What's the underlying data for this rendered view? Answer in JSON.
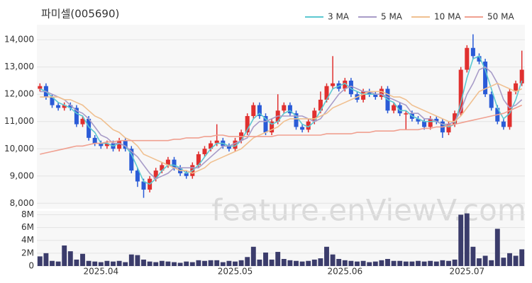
{
  "chart_data": [
    {
      "type": "candlestick",
      "title": "파미셀(005690)",
      "watermark": "feature.enViewV.com",
      "up_color": "#e0302f",
      "down_color": "#2a5bd7",
      "open": [
        12200,
        12300,
        11900,
        11600,
        11500,
        11600,
        11500,
        10900,
        11100,
        10400,
        10200,
        10100,
        10200,
        10000,
        10300,
        10000,
        9200,
        8800,
        8500,
        8900,
        9200,
        9400,
        9600,
        9300,
        9100,
        9000,
        9400,
        9800,
        10000,
        10200,
        10300,
        10100,
        10000,
        10300,
        10600,
        11200,
        11600,
        11200,
        10600,
        11000,
        11400,
        11600,
        11300,
        10800,
        10700,
        11000,
        11400,
        11800,
        12300,
        12400,
        12200,
        12500,
        12000,
        11800,
        12100,
        12000,
        11900,
        12200,
        11400,
        11600,
        11300,
        11300,
        11100,
        11000,
        10800,
        11100,
        11000,
        10600,
        10900,
        11300,
        12900,
        13700,
        13400,
        13200,
        12000,
        11500,
        11000,
        10800,
        12100,
        12400
      ],
      "high": [
        12400,
        12400,
        12000,
        11700,
        11700,
        11700,
        11600,
        11200,
        11200,
        10500,
        10300,
        10300,
        10300,
        10400,
        10400,
        10100,
        9300,
        8900,
        9000,
        9300,
        9500,
        9700,
        9700,
        9400,
        9200,
        9500,
        9900,
        10100,
        10300,
        10900,
        10400,
        10200,
        10400,
        10700,
        11300,
        11700,
        11700,
        11300,
        11100,
        12000,
        11700,
        11700,
        11400,
        10900,
        11100,
        11500,
        12100,
        12400,
        13400,
        12500,
        12600,
        12600,
        12100,
        12200,
        12200,
        12100,
        12300,
        12300,
        11700,
        11700,
        11400,
        11400,
        11200,
        11100,
        11200,
        11200,
        11100,
        11000,
        11400,
        13000,
        13800,
        14200,
        13500,
        13300,
        12100,
        11600,
        11100,
        12200,
        12500,
        13600
      ],
      "low": [
        12100,
        11800,
        11500,
        11400,
        11400,
        11400,
        10800,
        10800,
        10300,
        10100,
        10000,
        10000,
        9900,
        9900,
        9900,
        9100,
        8600,
        8200,
        8400,
        8800,
        9100,
        9300,
        9200,
        9000,
        8900,
        8900,
        9300,
        9700,
        9900,
        10100,
        10000,
        9900,
        9900,
        10200,
        10500,
        11100,
        11100,
        10500,
        10500,
        10900,
        11300,
        11200,
        10700,
        10600,
        10600,
        10900,
        11300,
        11700,
        12200,
        12100,
        12100,
        11900,
        11700,
        11700,
        11900,
        11800,
        11800,
        11300,
        11300,
        11200,
        10700,
        11000,
        10900,
        10700,
        10700,
        10900,
        10400,
        10500,
        10800,
        11200,
        12800,
        13300,
        13100,
        11900,
        11400,
        10900,
        10700,
        10700,
        12000,
        12300
      ],
      "close": [
        12300,
        11900,
        11600,
        11500,
        11600,
        11500,
        10900,
        11100,
        10400,
        10200,
        10100,
        10200,
        10000,
        10300,
        10000,
        9200,
        8800,
        8500,
        8900,
        9200,
        9400,
        9600,
        9300,
        9100,
        9000,
        9400,
        9800,
        10000,
        10200,
        10300,
        10100,
        10000,
        10300,
        10600,
        11200,
        11600,
        11200,
        10600,
        11000,
        11400,
        11600,
        11300,
        10800,
        10700,
        11000,
        11400,
        11800,
        12300,
        12400,
        12200,
        12500,
        12000,
        11800,
        12100,
        12000,
        11900,
        12200,
        11400,
        11600,
        11300,
        11300,
        11100,
        11000,
        10800,
        11100,
        11000,
        10600,
        10900,
        11300,
        12900,
        13700,
        13400,
        13200,
        12000,
        11500,
        11000,
        10800,
        12100,
        12400,
        12900
      ],
      "series": [
        {
          "name": "3 MA",
          "color": "#5cc8d0",
          "values": [
            12200,
            12100,
            11900,
            11700,
            11600,
            11500,
            11300,
            11200,
            10800,
            10600,
            10200,
            10200,
            10100,
            10200,
            10100,
            9800,
            9300,
            8800,
            8700,
            8900,
            9200,
            9400,
            9400,
            9300,
            9100,
            9200,
            9400,
            9700,
            10000,
            10200,
            10200,
            10100,
            10100,
            10300,
            10700,
            11100,
            11300,
            11100,
            10900,
            11000,
            11300,
            11400,
            11200,
            10900,
            10800,
            11000,
            11400,
            11800,
            12200,
            12300,
            12400,
            12200,
            12100,
            12000,
            12000,
            12000,
            12000,
            11800,
            11700,
            11400,
            11400,
            11200,
            11100,
            11000,
            11000,
            11000,
            10900,
            10800,
            10900,
            11700,
            12600,
            13300,
            13400,
            12900,
            12200,
            11500,
            11100,
            11300,
            11800,
            12500
          ]
        },
        {
          "name": "5 MA",
          "color": "#a89cc8",
          "values": [
            12100,
            12100,
            12000,
            11900,
            11800,
            11600,
            11400,
            11300,
            11100,
            10800,
            10500,
            10400,
            10200,
            10200,
            10100,
            9900,
            9700,
            9400,
            9100,
            8900,
            9000,
            9100,
            9300,
            9300,
            9300,
            9300,
            9300,
            9500,
            9700,
            9900,
            10100,
            10100,
            10200,
            10300,
            10400,
            10800,
            11000,
            11000,
            11100,
            11200,
            11200,
            11200,
            11200,
            11200,
            11100,
            11000,
            11100,
            11400,
            11700,
            12000,
            12200,
            12300,
            12200,
            12100,
            12100,
            12000,
            12000,
            11900,
            11800,
            11700,
            11600,
            11300,
            11300,
            11100,
            11100,
            11000,
            10900,
            10900,
            11000,
            11400,
            12000,
            12400,
            12900,
            13000,
            12800,
            12400,
            11800,
            11500,
            11600,
            11800
          ]
        },
        {
          "name": "10 MA",
          "color": "#f0c090",
          "values": [
            11900,
            11900,
            11900,
            11900,
            11800,
            11800,
            11700,
            11600,
            11400,
            11200,
            11100,
            10900,
            10700,
            10600,
            10400,
            10300,
            10100,
            9800,
            9700,
            9600,
            9500,
            9400,
            9300,
            9200,
            9200,
            9100,
            9200,
            9300,
            9500,
            9600,
            9700,
            9800,
            9900,
            10000,
            10200,
            10400,
            10500,
            10600,
            10700,
            10800,
            11000,
            11100,
            11100,
            11100,
            11100,
            11100,
            11200,
            11300,
            11500,
            11600,
            11700,
            11800,
            11900,
            12000,
            12100,
            12100,
            12100,
            12000,
            11900,
            11900,
            11800,
            11600,
            11500,
            11400,
            11300,
            11200,
            11100,
            11000,
            11000,
            11200,
            11500,
            11800,
            12100,
            12200,
            12300,
            12400,
            12300,
            12200,
            12100,
            12200
          ]
        },
        {
          "name": "50 MA",
          "color": "#f0a090",
          "values": [
            9800,
            9850,
            9900,
            9950,
            10000,
            10050,
            10100,
            10100,
            10150,
            10200,
            10200,
            10250,
            10250,
            10300,
            10300,
            10300,
            10300,
            10300,
            10300,
            10300,
            10300,
            10300,
            10350,
            10350,
            10400,
            10400,
            10400,
            10450,
            10450,
            10500,
            10500,
            10450,
            10450,
            10450,
            10450,
            10450,
            10450,
            10450,
            10450,
            10500,
            10500,
            10500,
            10500,
            10500,
            10500,
            10500,
            10500,
            10550,
            10550,
            10550,
            10550,
            10550,
            10600,
            10600,
            10600,
            10650,
            10650,
            10650,
            10650,
            10700,
            10700,
            10700,
            10700,
            10750,
            10750,
            10800,
            10800,
            10850,
            10900,
            10950,
            11000,
            11050,
            11100,
            11150,
            11200,
            11250,
            11300,
            11400,
            11500,
            11600
          ]
        }
      ],
      "ylim": [
        7800,
        14550
      ],
      "yticks": [
        {
          "value": 8000,
          "label": "8,000"
        },
        {
          "value": 9000,
          "label": "9,000"
        },
        {
          "value": 10000,
          "label": "10,000"
        },
        {
          "value": 11000,
          "label": "11,000"
        },
        {
          "value": 12000,
          "label": "12,000"
        },
        {
          "value": 13000,
          "label": "13,000"
        },
        {
          "value": 14000,
          "label": "14,000"
        }
      ],
      "grid": true
    },
    {
      "type": "bar",
      "color": "#3b3c6b",
      "categories": [
        null,
        null,
        null,
        null,
        null,
        null,
        null,
        null,
        null,
        null,
        "2025.04",
        null,
        null,
        null,
        null,
        null,
        null,
        null,
        null,
        null,
        null,
        null,
        null,
        null,
        null,
        null,
        null,
        null,
        null,
        null,
        null,
        null,
        "2025.05",
        null,
        null,
        null,
        null,
        null,
        null,
        null,
        null,
        null,
        null,
        null,
        null,
        null,
        null,
        null,
        null,
        null,
        "2025.06",
        null,
        null,
        null,
        null,
        null,
        null,
        null,
        null,
        null,
        null,
        null,
        null,
        null,
        null,
        null,
        null,
        null,
        null,
        null,
        "2025.07",
        null,
        null,
        null,
        null,
        null,
        null,
        null,
        null,
        null
      ],
      "values": [
        1500000,
        2000000,
        800000,
        700000,
        3200000,
        2300000,
        1000000,
        1900000,
        800000,
        700000,
        600000,
        800000,
        700000,
        800000,
        600000,
        1800000,
        1700000,
        1000000,
        700000,
        600000,
        800000,
        700000,
        600000,
        500000,
        700000,
        600000,
        900000,
        800000,
        900000,
        900000,
        600000,
        800000,
        700000,
        900000,
        1400000,
        3000000,
        1000000,
        2100000,
        1000000,
        2200000,
        1100000,
        900000,
        800000,
        700000,
        800000,
        1000000,
        1200000,
        3000000,
        1800000,
        1100000,
        900000,
        800000,
        700000,
        800000,
        600000,
        700000,
        900000,
        1100000,
        800000,
        800000,
        700000,
        700000,
        800000,
        700000,
        800000,
        700000,
        900000,
        800000,
        1000000,
        8000000,
        8200000,
        3000000,
        1200000,
        1600000,
        900000,
        5800000,
        1300000,
        2000000,
        1600000,
        2600000
      ],
      "ylim": [
        0,
        8600000
      ],
      "yticks": [
        {
          "value": 0,
          "label": "0"
        },
        {
          "value": 2000000,
          "label": "2M"
        },
        {
          "value": 4000000,
          "label": "4M"
        },
        {
          "value": 6000000,
          "label": "6M"
        },
        {
          "value": 8000000,
          "label": "8M"
        }
      ],
      "grid": true
    }
  ]
}
